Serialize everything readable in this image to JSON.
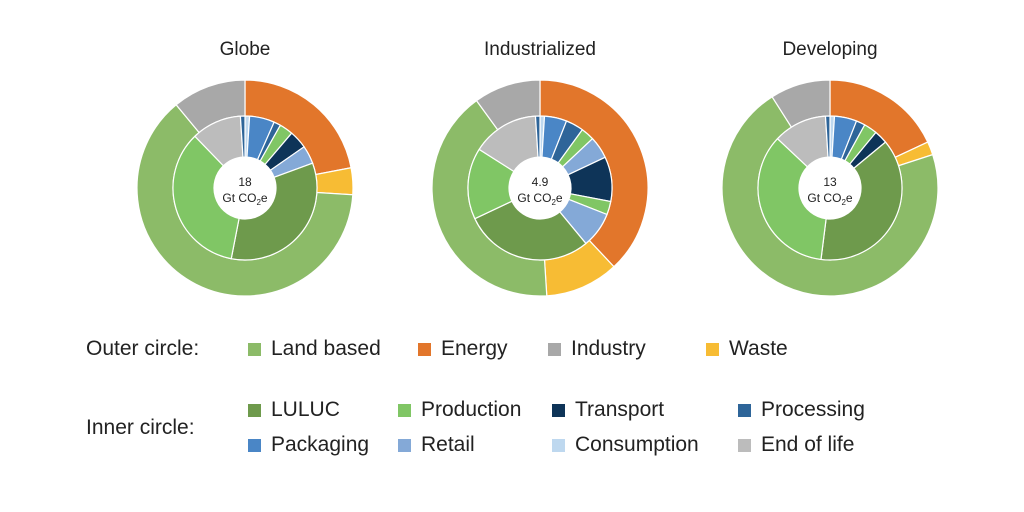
{
  "colors": {
    "land_based": "#8cbb68",
    "energy": "#e2762b",
    "industry": "#a8a8a8",
    "waste": "#f7bc34",
    "luluc": "#6e9a4c",
    "production": "#80c665",
    "transport": "#0e3458",
    "processing": "#2e6599",
    "packaging": "#4a86c6",
    "retail": "#84a9d7",
    "consumption": "#bed8ef",
    "end_of_life": "#bcbcbc"
  },
  "chart_data": [
    {
      "type": "pie",
      "title": "Globe",
      "center_value": "18",
      "center_unit": "Gt CO",
      "center_sub": "2",
      "center_suffix": "e",
      "outer_ring": [
        {
          "category": "Energy",
          "value": 22
        },
        {
          "category": "Waste",
          "value": 4
        },
        {
          "category": "Land based",
          "value": 63
        },
        {
          "category": "Industry",
          "value": 11
        }
      ],
      "inner_ring": [
        {
          "category": "Consumption",
          "value": 1
        },
        {
          "category": "Packaging",
          "value": 5.5
        },
        {
          "category": "Processing",
          "value": 1.5
        },
        {
          "category": "Production",
          "value": 3
        },
        {
          "category": "Transport",
          "value": 4
        },
        {
          "category": "Retail",
          "value": 4
        },
        {
          "category": "LULUC",
          "value": 33
        },
        {
          "category": "Production",
          "value": 34
        },
        {
          "category": "End of life",
          "value": 11
        },
        {
          "category": "Processing",
          "value": 1
        }
      ]
    },
    {
      "type": "pie",
      "title": "Industrialized",
      "center_value": "4.9",
      "center_unit": "Gt CO",
      "center_sub": "2",
      "center_suffix": "e",
      "outer_ring": [
        {
          "category": "Energy",
          "value": 38
        },
        {
          "category": "Waste",
          "value": 11
        },
        {
          "category": "Land based",
          "value": 41
        },
        {
          "category": "Industry",
          "value": 10
        }
      ],
      "inner_ring": [
        {
          "category": "Consumption",
          "value": 1
        },
        {
          "category": "Packaging",
          "value": 5
        },
        {
          "category": "Processing",
          "value": 4
        },
        {
          "category": "Production",
          "value": 3
        },
        {
          "category": "Retail",
          "value": 5
        },
        {
          "category": "Transport",
          "value": 10
        },
        {
          "category": "Production",
          "value": 3
        },
        {
          "category": "Retail",
          "value": 8
        },
        {
          "category": "LULUC",
          "value": 29
        },
        {
          "category": "Production",
          "value": 16
        },
        {
          "category": "End of life",
          "value": 15
        },
        {
          "category": "Processing",
          "value": 1
        }
      ]
    },
    {
      "type": "pie",
      "title": "Developing",
      "center_value": "13",
      "center_unit": "Gt CO",
      "center_sub": "2",
      "center_suffix": "e",
      "outer_ring": [
        {
          "category": "Energy",
          "value": 18
        },
        {
          "category": "Waste",
          "value": 2
        },
        {
          "category": "Land based",
          "value": 71
        },
        {
          "category": "Industry",
          "value": 9
        }
      ],
      "inner_ring": [
        {
          "category": "Consumption",
          "value": 1
        },
        {
          "category": "Packaging",
          "value": 5
        },
        {
          "category": "Processing",
          "value": 2
        },
        {
          "category": "Production",
          "value": 3
        },
        {
          "category": "Transport",
          "value": 3
        },
        {
          "category": "LULUC",
          "value": 38
        },
        {
          "category": "Production",
          "value": 35
        },
        {
          "category": "End of life",
          "value": 12
        },
        {
          "category": "Processing",
          "value": 1
        }
      ]
    }
  ],
  "legend": {
    "outer_label": "Outer circle:",
    "inner_label": "Inner circle:",
    "outer_items": [
      {
        "label": "Land based",
        "color_key": "land_based"
      },
      {
        "label": "Energy",
        "color_key": "energy"
      },
      {
        "label": "Industry",
        "color_key": "industry"
      },
      {
        "label": "Waste",
        "color_key": "waste"
      }
    ],
    "inner_items": [
      {
        "label": "LULUC",
        "color_key": "luluc"
      },
      {
        "label": "Production",
        "color_key": "production"
      },
      {
        "label": "Transport",
        "color_key": "transport"
      },
      {
        "label": "Processing",
        "color_key": "processing"
      },
      {
        "label": "Packaging",
        "color_key": "packaging"
      },
      {
        "label": "Retail",
        "color_key": "retail"
      },
      {
        "label": "Consumption",
        "color_key": "consumption"
      },
      {
        "label": "End of life",
        "color_key": "end_of_life"
      }
    ]
  }
}
